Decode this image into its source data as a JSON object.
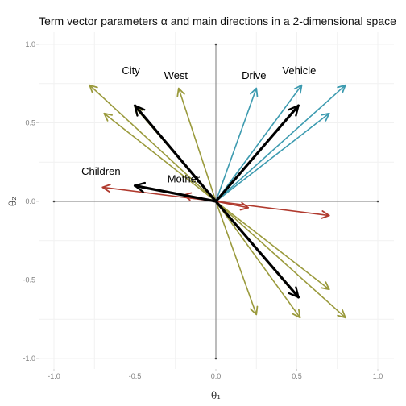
{
  "chart_data": {
    "type": "vector",
    "title": "Term vector parameters  α  and main directions in a 2-dimensional space",
    "xlabel": "θ₁",
    "ylabel": "θ₂",
    "xlim": [
      -1.0,
      1.0
    ],
    "ylim": [
      -1.0,
      1.0
    ],
    "x_ticks": [
      "-1.0",
      "-0.5",
      "0.0",
      "0.5",
      "1.0"
    ],
    "y_ticks": [
      "-1.0",
      "-0.5",
      "0.0",
      "0.5",
      "1.0"
    ],
    "grid": true,
    "colors": {
      "olive": "#9a9a3c",
      "teal": "#3d9bb0",
      "red": "#b03a2e",
      "black": "#000000",
      "axis": "#7a7a7a",
      "grid": "#f1f1f1"
    },
    "vectors": [
      {
        "group": "olive",
        "x": -0.78,
        "y": 0.74
      },
      {
        "group": "olive",
        "x": -0.69,
        "y": 0.56
      },
      {
        "group": "olive",
        "x": -0.5,
        "y": 0.6
      },
      {
        "group": "olive",
        "x": -0.23,
        "y": 0.72
      },
      {
        "group": "olive",
        "x": 0.7,
        "y": -0.56
      },
      {
        "group": "olive",
        "x": 0.8,
        "y": -0.74
      },
      {
        "group": "olive",
        "x": 0.52,
        "y": -0.74
      },
      {
        "group": "olive",
        "x": 0.25,
        "y": -0.72
      },
      {
        "group": "teal",
        "x": 0.25,
        "y": 0.72
      },
      {
        "group": "teal",
        "x": 0.53,
        "y": 0.74
      },
      {
        "group": "teal",
        "x": 0.8,
        "y": 0.74
      },
      {
        "group": "teal",
        "x": 0.7,
        "y": 0.56
      },
      {
        "group": "red",
        "x": -0.7,
        "y": 0.09
      },
      {
        "group": "red",
        "x": -0.2,
        "y": 0.04
      },
      {
        "group": "red",
        "x": 0.7,
        "y": -0.09
      },
      {
        "group": "red",
        "x": 0.2,
        "y": -0.04
      },
      {
        "group": "black",
        "x": -0.5,
        "y": 0.61
      },
      {
        "group": "black",
        "x": -0.5,
        "y": 0.1
      },
      {
        "group": "black",
        "x": 0.51,
        "y": 0.61
      },
      {
        "group": "black",
        "x": 0.51,
        "y": -0.61
      }
    ],
    "annotations": [
      {
        "text": "City",
        "x": -0.58,
        "y": 0.81
      },
      {
        "text": "West",
        "x": -0.32,
        "y": 0.78
      },
      {
        "text": "Drive",
        "x": 0.16,
        "y": 0.78
      },
      {
        "text": "Vehicle",
        "x": 0.41,
        "y": 0.81
      },
      {
        "text": "Children",
        "x": -0.83,
        "y": 0.17
      },
      {
        "text": "Mother",
        "x": -0.3,
        "y": 0.12
      }
    ]
  }
}
